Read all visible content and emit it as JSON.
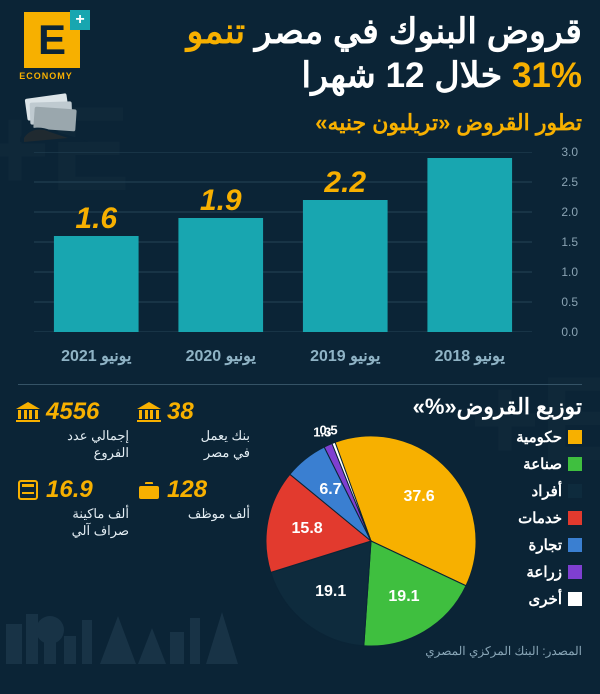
{
  "logo": {
    "letter": "E",
    "plus": "+",
    "word": "ECONOMY"
  },
  "title_l1_pre": "قروض البنوك في مصر ",
  "title_l1_hl": "تنمو",
  "title_l2_hl": "31%",
  "title_l2_post": " خلال 12 شهرا",
  "subtitle": "تطور القروض «تريليون جنيه»",
  "bar_chart": {
    "type": "bar",
    "categories": [
      "يونيو 2018",
      "يونيو 2019",
      "يونيو 2020",
      "يونيو 2021"
    ],
    "values": [
      1.6,
      1.9,
      2.2,
      2.9
    ],
    "bar_color": "#18a6b0",
    "value_color": "#f7b000",
    "ylim": [
      0,
      3.0
    ],
    "ytick_step": 0.5,
    "grid_color": "#244356",
    "background_color": "#0b2436"
  },
  "distribution_title": "توزيع القروض«%»",
  "pie": {
    "type": "pie",
    "slices": [
      {
        "label": "حكومية",
        "value": 37.6,
        "color": "#f7b000"
      },
      {
        "label": "صناعة",
        "value": 19.1,
        "color": "#3fbf3f"
      },
      {
        "label": "أفراد",
        "value": 19.1,
        "color": "#0e2b3d"
      },
      {
        "label": "خدمات",
        "value": 15.8,
        "color": "#e23a2e"
      },
      {
        "label": "تجارة",
        "value": 6.7,
        "color": "#3a7fd1"
      },
      {
        "label": "زراعة",
        "value": 1.3,
        "color": "#7f3fd1"
      },
      {
        "label": "أخرى",
        "value": 0.5,
        "color": "#ffffff"
      }
    ]
  },
  "stats": [
    {
      "value": "38",
      "label": "بنك يعمل\nفي مصر",
      "icon": "bank"
    },
    {
      "value": "4556",
      "label": "إجمالي عدد\nالفروع",
      "icon": "bank"
    },
    {
      "value": "128",
      "label": "ألف موظف",
      "icon": "briefcase"
    },
    {
      "value": "16.9",
      "label": "ألف ماكينة\nصراف آلي",
      "icon": "atm"
    }
  ],
  "source": "المصدر: البنك المركزي المصري"
}
